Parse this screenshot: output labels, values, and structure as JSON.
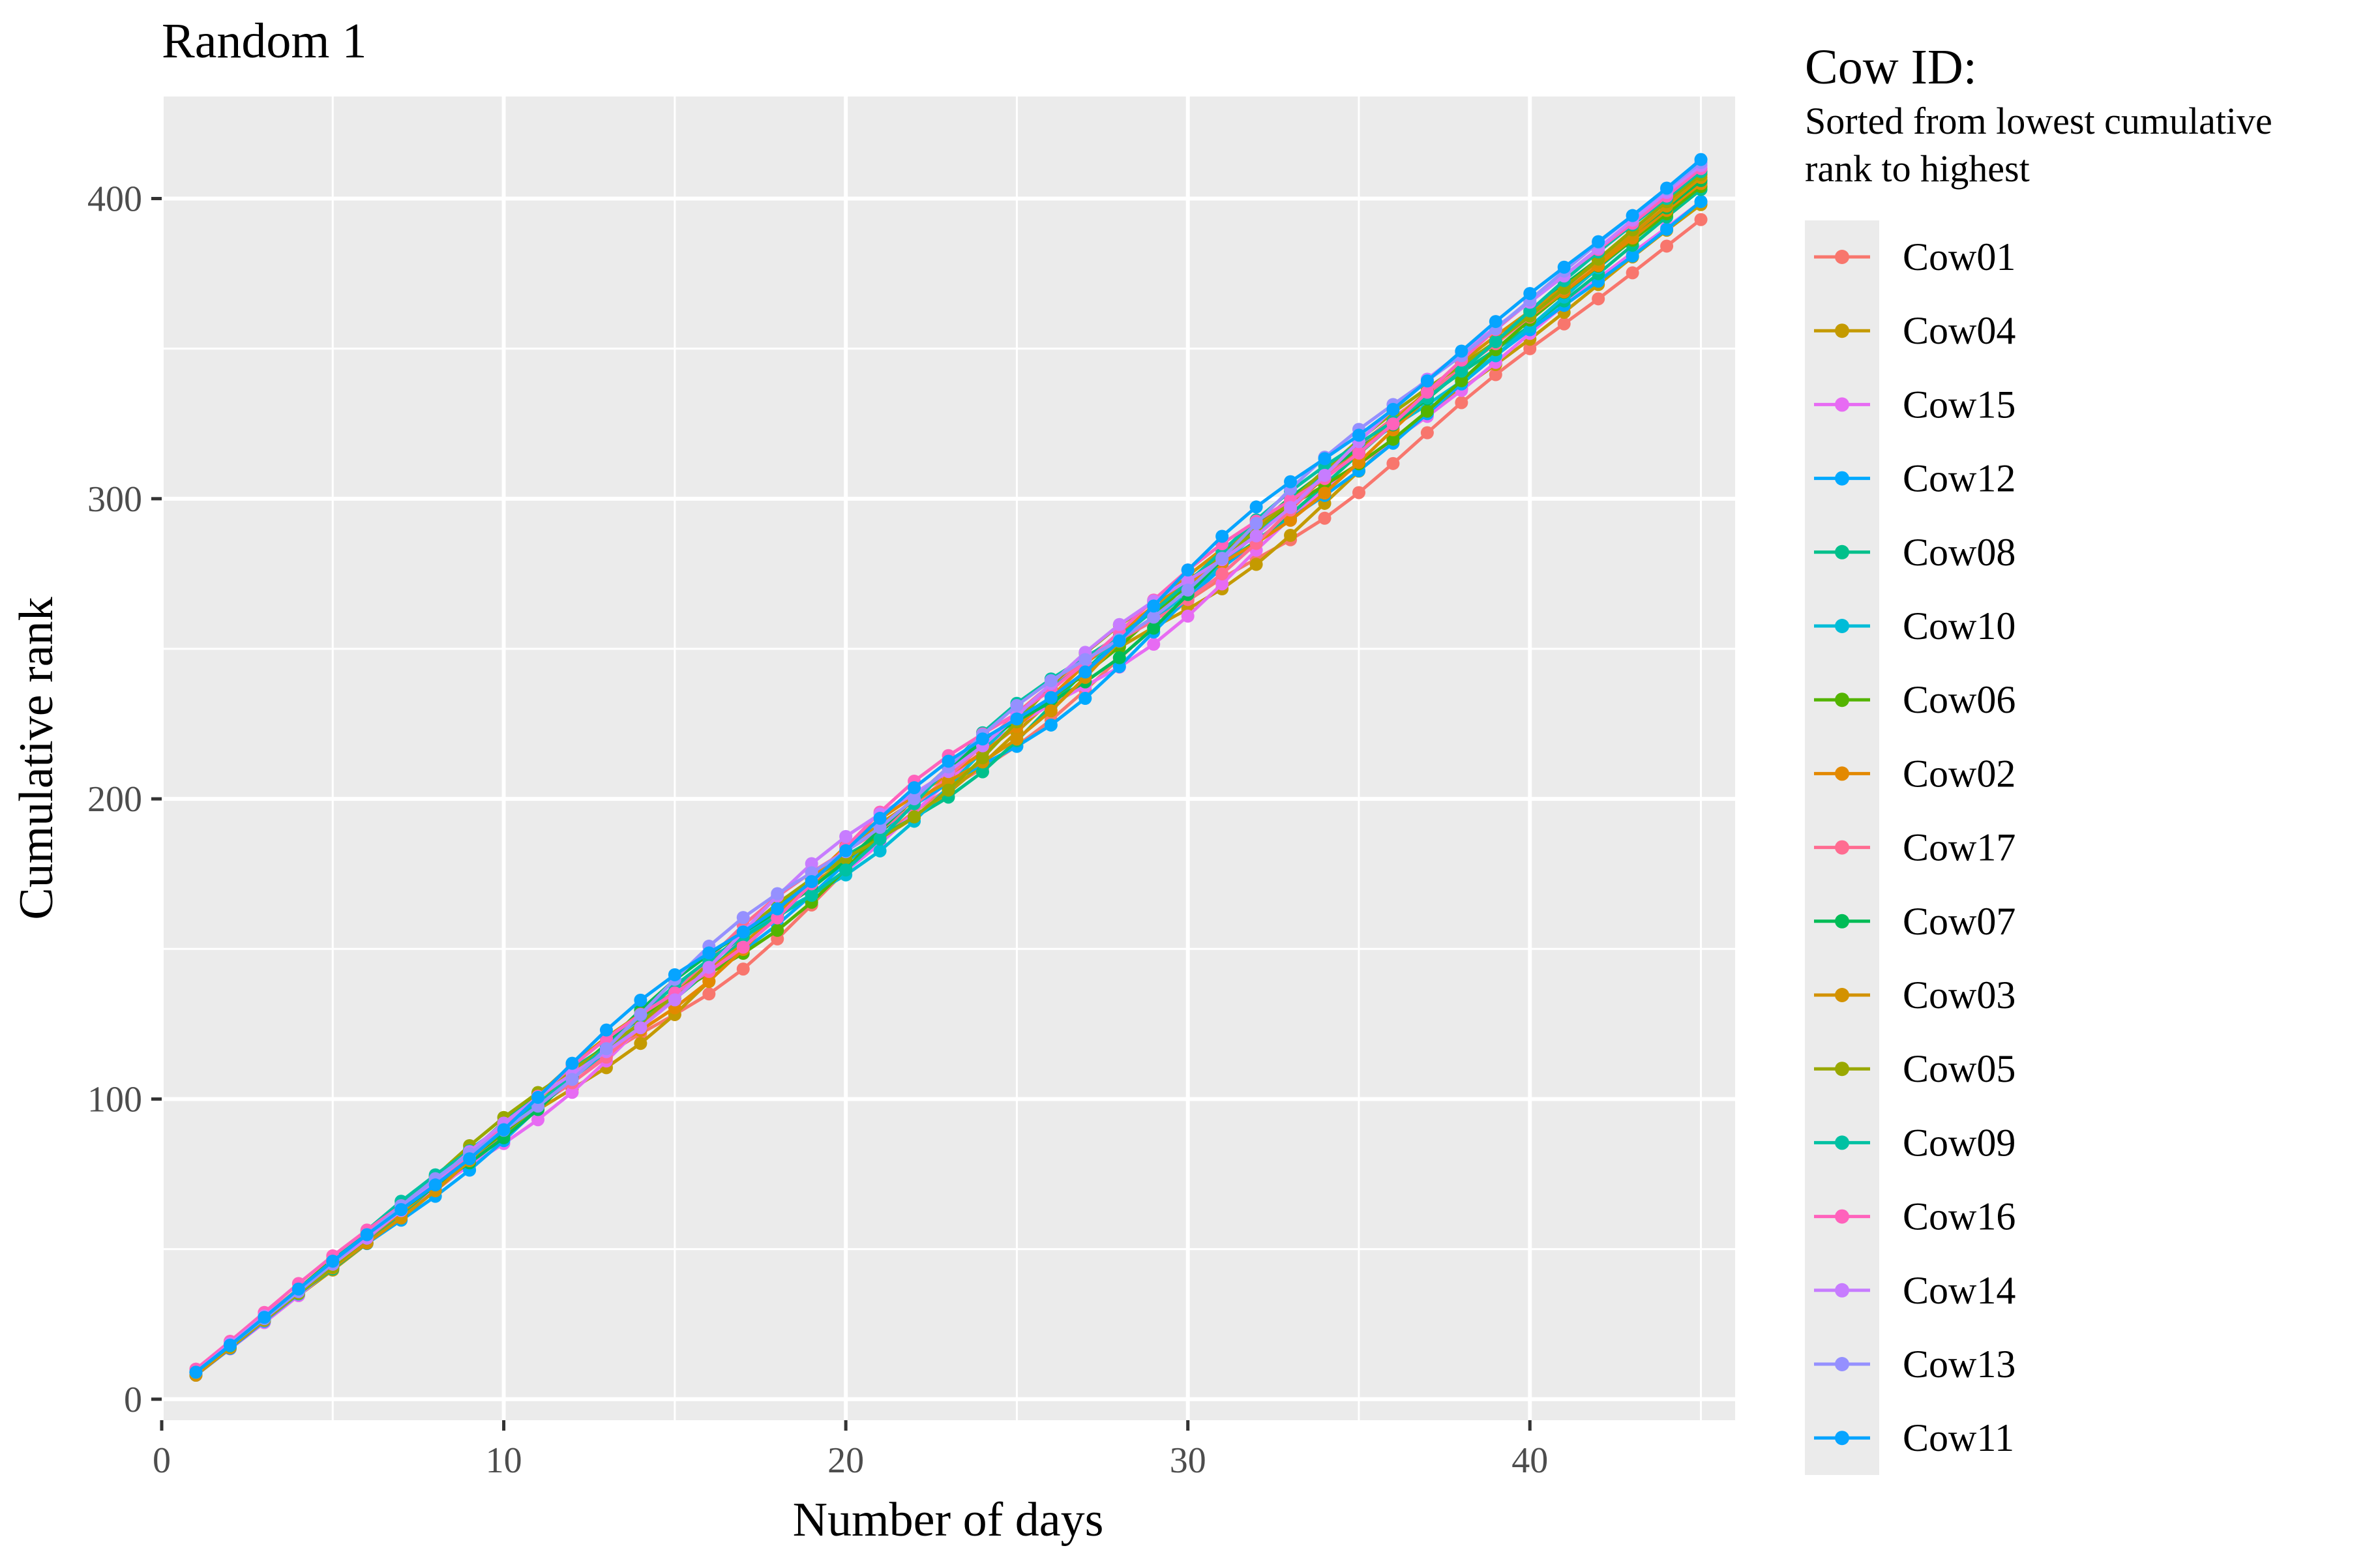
{
  "chart_data": {
    "type": "line",
    "title": "Random 1",
    "xlabel": "Number of days",
    "ylabel": "Cumulative rank",
    "xlim": [
      0,
      46
    ],
    "ylim": [
      -7,
      434
    ],
    "x_ticks": [
      0,
      10,
      20,
      30,
      40
    ],
    "y_ticks": [
      0,
      100,
      200,
      300,
      400
    ],
    "grid": true,
    "legend_position": "right",
    "legend": {
      "title": "Cow ID:",
      "subtitle_lines": [
        "Sorted from lowest cumulative",
        "rank to highest"
      ]
    },
    "x": [
      1,
      2,
      3,
      4,
      5,
      6,
      7,
      8,
      9,
      10,
      11,
      12,
      13,
      14,
      15,
      16,
      17,
      18,
      19,
      20,
      21,
      22,
      23,
      24,
      25,
      26,
      27,
      28,
      29,
      30,
      31,
      32,
      33,
      34,
      35,
      36,
      37,
      38,
      39,
      40,
      41,
      42,
      43,
      44,
      45
    ],
    "series": [
      {
        "name": "Cow01",
        "color": "#F8766D",
        "start": 9,
        "end": 393
      },
      {
        "name": "Cow04",
        "color": "#C49A00",
        "start": 8,
        "end": 398
      },
      {
        "name": "Cow15",
        "color": "#E76BF3",
        "start": 8,
        "end": 399
      },
      {
        "name": "Cow12",
        "color": "#00A9FF",
        "start": 8,
        "end": 399
      },
      {
        "name": "Cow08",
        "color": "#00C08B",
        "start": 9,
        "end": 403
      },
      {
        "name": "Cow10",
        "color": "#00BCD8",
        "start": 9,
        "end": 404
      },
      {
        "name": "Cow06",
        "color": "#53B400",
        "start": 9,
        "end": 404
      },
      {
        "name": "Cow02",
        "color": "#E38900",
        "start": 9,
        "end": 405
      },
      {
        "name": "Cow17",
        "color": "#FF6C91",
        "start": 10,
        "end": 406
      },
      {
        "name": "Cow07",
        "color": "#00BC56",
        "start": 9,
        "end": 406
      },
      {
        "name": "Cow03",
        "color": "#D39200",
        "start": 8,
        "end": 407
      },
      {
        "name": "Cow05",
        "color": "#99A800",
        "start": 9,
        "end": 408
      },
      {
        "name": "Cow09",
        "color": "#00C1A3",
        "start": 9,
        "end": 409
      },
      {
        "name": "Cow16",
        "color": "#FF62BC",
        "start": 10,
        "end": 410
      },
      {
        "name": "Cow14",
        "color": "#C77CFF",
        "start": 9,
        "end": 411
      },
      {
        "name": "Cow13",
        "color": "#9590FF",
        "start": 9,
        "end": 412
      },
      {
        "name": "Cow11",
        "color": "#06A4FF",
        "start": 9,
        "end": 413
      }
    ]
  }
}
